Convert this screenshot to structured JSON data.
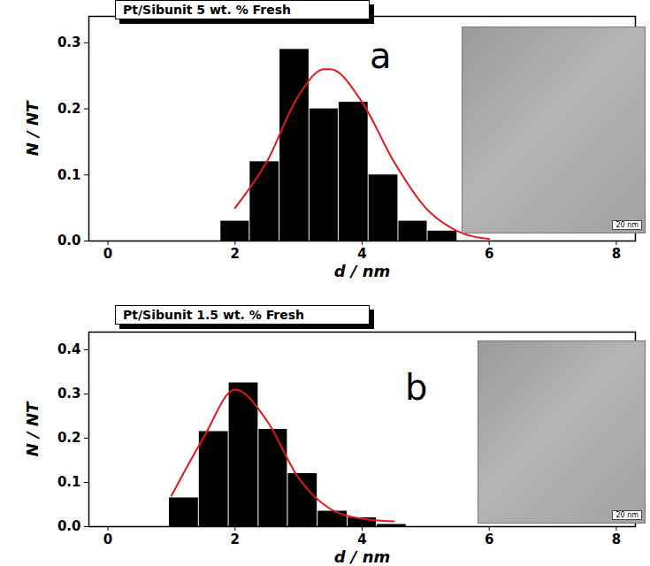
{
  "chart_data": [
    {
      "type": "histogram",
      "title": "Pt/Sibunit 5 wt. % Fresh",
      "panel_label": "a",
      "x_label": "d / nm",
      "y_label": "N / NT",
      "image_scale_bar": "20 nm",
      "bins": [
        1.77,
        2.23,
        2.7,
        3.17,
        3.63,
        4.1,
        4.57,
        5.03,
        5.5
      ],
      "values": [
        0.03,
        0.12,
        0.29,
        0.2,
        0.21,
        0.1,
        0.03,
        0.015
      ],
      "color": "#000000",
      "fit": {
        "type": "line",
        "color": "#e8141a",
        "x": [
          2,
          2.5,
          3,
          3.4,
          3.5,
          4,
          4.5,
          5,
          5.5,
          6
        ],
        "values": [
          0.05,
          0.12,
          0.22,
          0.26,
          0.26,
          0.21,
          0.12,
          0.05,
          0.015,
          0.003
        ]
      },
      "xlim": [
        -0.3,
        8.3
      ],
      "xticks": [
        0,
        2,
        4,
        6,
        8
      ],
      "ylim": [
        0,
        0.34
      ],
      "yticks": [
        {
          "value": 0,
          "label": "0.0"
        },
        {
          "value": 0.1,
          "label": "0.1"
        },
        {
          "value": 0.2,
          "label": "0.2"
        },
        {
          "value": 0.3,
          "label": "0.3"
        }
      ]
    },
    {
      "type": "histogram",
      "title": "Pt/Sibunit 1.5 wt. % Fresh",
      "panel_label": "b",
      "x_label": "d / nm",
      "y_label": "N / NT",
      "image_scale_bar": "20 nm",
      "bins": [
        0.96,
        1.43,
        1.9,
        2.37,
        2.83,
        3.3,
        3.77,
        4.23,
        4.7
      ],
      "values": [
        0.065,
        0.215,
        0.325,
        0.22,
        0.12,
        0.035,
        0.02,
        0.005
      ],
      "color": "#000000",
      "fit": {
        "type": "line",
        "color": "#e8141a",
        "x": [
          1,
          1.5,
          2,
          2.5,
          3,
          3.5,
          4,
          4.5
        ],
        "values": [
          0.07,
          0.2,
          0.31,
          0.24,
          0.11,
          0.04,
          0.018,
          0.012
        ]
      },
      "xlim": [
        -0.3,
        8.3
      ],
      "xticks": [
        0,
        2,
        4,
        6,
        8
      ],
      "ylim": [
        0,
        0.44
      ],
      "yticks": [
        {
          "value": 0,
          "label": "0.0"
        },
        {
          "value": 0.1,
          "label": "0.1"
        },
        {
          "value": 0.2,
          "label": "0.2"
        },
        {
          "value": 0.3,
          "label": "0.3"
        },
        {
          "value": 0.4,
          "label": "0.4"
        }
      ]
    }
  ]
}
